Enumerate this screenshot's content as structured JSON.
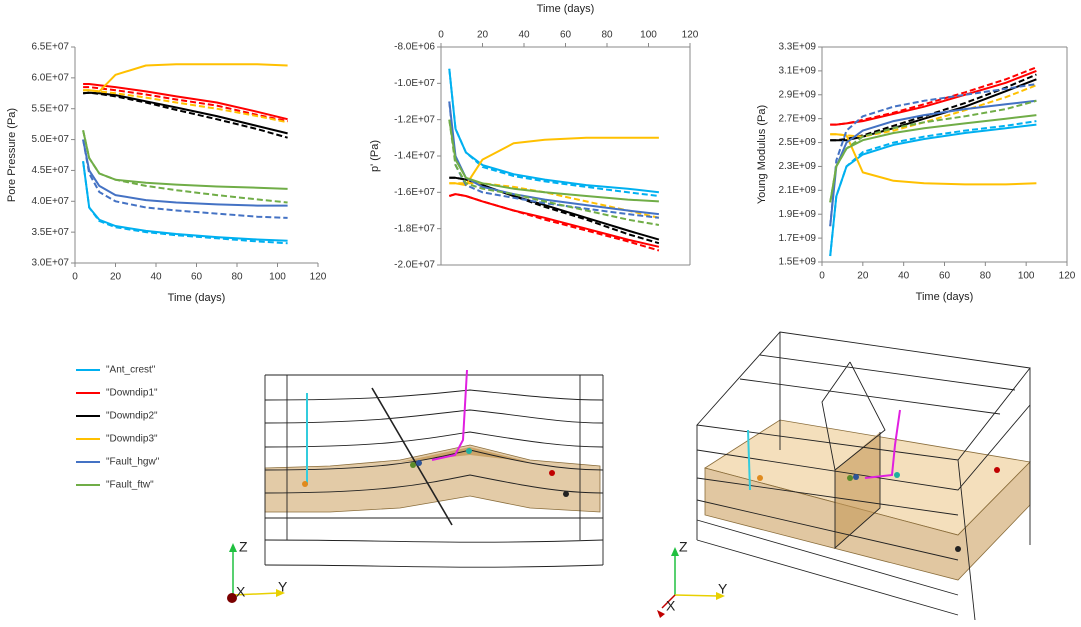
{
  "chart_data": [
    {
      "type": "line",
      "frame": "axes",
      "x_axis_position": "bottom",
      "x_label": "Time (days)",
      "y_label": "Pore Pressure (Pa)",
      "xlim": [
        0,
        120
      ],
      "xticks": [
        0,
        20,
        40,
        60,
        80,
        100,
        120
      ],
      "ylim": [
        30000000.0,
        65000000.0
      ],
      "yticks": [
        {
          "value": 30000000.0,
          "label": "3.0E+07"
        },
        {
          "value": 35000000.0,
          "label": "3.5E+07"
        },
        {
          "value": 40000000.0,
          "label": "4.0E+07"
        },
        {
          "value": 45000000.0,
          "label": "4.5E+07"
        },
        {
          "value": 50000000.0,
          "label": "5.0E+07"
        },
        {
          "value": 55000000.0,
          "label": "5.5E+07"
        },
        {
          "value": 60000000.0,
          "label": "6.0E+07"
        },
        {
          "value": 65000000.0,
          "label": "6.5E+07"
        }
      ],
      "x": [
        4,
        7,
        12,
        20,
        35,
        50,
        70,
        90,
        105
      ],
      "series": [
        {
          "name": "\"Ant_crest\"",
          "color": "#00b0f0",
          "values": [
            46500000.0,
            39000000.0,
            37000000.0,
            36000000.0,
            35200000.0,
            34700000.0,
            34200000.0,
            33800000.0,
            33600000.0
          ],
          "dashed_values": [
            46500000.0,
            39000000.0,
            36800000.0,
            35800000.0,
            35000000.0,
            34500000.0,
            34000000.0,
            33500000.0,
            33200000.0
          ]
        },
        {
          "name": "\"Downdip1\"",
          "color": "#ff0000",
          "values": [
            59000000.0,
            59000000.0,
            58800000.0,
            58500000.0,
            57800000.0,
            57000000.0,
            56000000.0,
            54500000.0,
            53300000.0
          ],
          "dashed_values": [
            58500000.0,
            58500000.0,
            58300000.0,
            58000000.0,
            57300000.0,
            56500000.0,
            55500000.0,
            54000000.0,
            53000000.0
          ]
        },
        {
          "name": "\"Downdip2\"",
          "color": "#000000",
          "values": [
            57500000.0,
            57600000.0,
            57500000.0,
            57200000.0,
            56200000.0,
            55200000.0,
            53800000.0,
            52200000.0,
            51000000.0
          ],
          "dashed_values": [
            57500000.0,
            57600000.0,
            57400000.0,
            57000000.0,
            56000000.0,
            54800000.0,
            53300000.0,
            51700000.0,
            50300000.0
          ]
        },
        {
          "name": "\"Downdip3\"",
          "color": "#ffc000",
          "values": [
            58000000.0,
            58000000.0,
            57800000.0,
            60500000.0,
            62000000.0,
            62200000.0,
            62200000.0,
            62200000.0,
            62000000.0
          ],
          "dashed_values": [
            58000000.0,
            58000000.0,
            57800000.0,
            57500000.0,
            56800000.0,
            56000000.0,
            55000000.0,
            53800000.0,
            52800000.0
          ]
        },
        {
          "name": "\"Fault_hgw\"",
          "color": "#4472c4",
          "values": [
            50000000.0,
            45000000.0,
            42500000.0,
            41000000.0,
            40200000.0,
            39800000.0,
            39500000.0,
            39300000.0,
            39300000.0
          ],
          "dashed_values": [
            50000000.0,
            44500000.0,
            41500000.0,
            40000000.0,
            39000000.0,
            38500000.0,
            38000000.0,
            37500000.0,
            37300000.0
          ]
        },
        {
          "name": "\"Fault_ftw\"",
          "color": "#70ad47",
          "values": [
            51500000.0,
            47000000.0,
            44500000.0,
            43500000.0,
            43000000.0,
            42700000.0,
            42400000.0,
            42200000.0,
            42000000.0
          ],
          "dashed_values": [
            51500000.0,
            47000000.0,
            44500000.0,
            43500000.0,
            42500000.0,
            41800000.0,
            41000000.0,
            40300000.0,
            39800000.0
          ]
        }
      ]
    },
    {
      "type": "line",
      "frame": "box",
      "x_axis_position": "top",
      "x_label": "Time (days)",
      "y_label": "p' (Pa)",
      "xlim": [
        0,
        120
      ],
      "xticks": [
        0,
        20,
        40,
        60,
        80,
        100,
        120
      ],
      "ylim": [
        -20000000.0,
        -8000000.0
      ],
      "yticks": [
        {
          "value": -8000000.0,
          "label": "-8.0E+06"
        },
        {
          "value": -10000000.0,
          "label": "-1.0E+07"
        },
        {
          "value": -12000000.0,
          "label": "-1.2E+07"
        },
        {
          "value": -14000000.0,
          "label": "-1.4E+07"
        },
        {
          "value": -16000000.0,
          "label": "-1.6E+07"
        },
        {
          "value": -18000000.0,
          "label": "-1.8E+07"
        },
        {
          "value": -20000000.0,
          "label": "-2.0E+07"
        }
      ],
      "x": [
        4,
        7,
        12,
        20,
        35,
        50,
        70,
        90,
        105
      ],
      "series": [
        {
          "color": "#00b0f0",
          "values": [
            -9200000.0,
            -12500000.0,
            -13800000.0,
            -14500000.0,
            -15000000.0,
            -15300000.0,
            -15600000.0,
            -15800000.0,
            -16000000.0
          ],
          "dashed_values": [
            -9200000.0,
            -12500000.0,
            -13800000.0,
            -14600000.0,
            -15100000.0,
            -15400000.0,
            -15700000.0,
            -16000000.0,
            -16200000.0
          ]
        },
        {
          "color": "#ff0000",
          "values": [
            -16200000.0,
            -16100000.0,
            -16200000.0,
            -16500000.0,
            -17000000.0,
            -17400000.0,
            -18000000.0,
            -18600000.0,
            -19000000.0
          ],
          "dashed_values": [
            -16200000.0,
            -16100000.0,
            -16200000.0,
            -16500000.0,
            -17000000.0,
            -17500000.0,
            -18100000.0,
            -18700000.0,
            -19200000.0
          ]
        },
        {
          "color": "#000000",
          "values": [
            -15200000.0,
            -15200000.0,
            -15300000.0,
            -15600000.0,
            -16200000.0,
            -16700000.0,
            -17400000.0,
            -18100000.0,
            -18600000.0
          ],
          "dashed_values": [
            -15200000.0,
            -15200000.0,
            -15300000.0,
            -15600000.0,
            -16200000.0,
            -16800000.0,
            -17500000.0,
            -18300000.0,
            -18800000.0
          ]
        },
        {
          "color": "#ffc000",
          "values": [
            -15500000.0,
            -15500000.0,
            -15600000.0,
            -14200000.0,
            -13300000.0,
            -13100000.0,
            -13000000.0,
            -13000000.0,
            -13000000.0
          ],
          "dashed_values": [
            -15500000.0,
            -15500000.0,
            -15500000.0,
            -15500000.0,
            -15700000.0,
            -16000000.0,
            -16500000.0,
            -17000000.0,
            -17400000.0
          ]
        },
        {
          "color": "#4472c4",
          "values": [
            -11000000.0,
            -14000000.0,
            -15200000.0,
            -15700000.0,
            -16100000.0,
            -16400000.0,
            -16700000.0,
            -17000000.0,
            -17200000.0
          ],
          "dashed_values": [
            -11000000.0,
            -14500000.0,
            -15600000.0,
            -16000000.0,
            -16300000.0,
            -16600000.0,
            -16900000.0,
            -17200000.0,
            -17400000.0
          ]
        },
        {
          "color": "#70ad47",
          "values": [
            -12000000.0,
            -14200000.0,
            -15200000.0,
            -15500000.0,
            -15800000.0,
            -16000000.0,
            -16200000.0,
            -16400000.0,
            -16500000.0
          ],
          "dashed_values": [
            -12000000.0,
            -14500000.0,
            -15500000.0,
            -15800000.0,
            -16100000.0,
            -16500000.0,
            -17000000.0,
            -17500000.0,
            -17800000.0
          ]
        }
      ]
    },
    {
      "type": "line",
      "frame": "box",
      "x_axis_position": "bottom",
      "x_label": "Time (days)",
      "y_label": "Young Modulus (Pa)",
      "xlim": [
        0,
        120
      ],
      "xticks": [
        0,
        20,
        40,
        60,
        80,
        100,
        120
      ],
      "ylim": [
        1500000000.0,
        3300000000.0
      ],
      "yticks": [
        {
          "value": 1500000000.0,
          "label": "1.5E+09"
        },
        {
          "value": 1700000000.0,
          "label": "1.7E+09"
        },
        {
          "value": 1900000000.0,
          "label": "1.9E+09"
        },
        {
          "value": 2100000000.0,
          "label": "2.1E+09"
        },
        {
          "value": 2300000000.0,
          "label": "2.3E+09"
        },
        {
          "value": 2500000000.0,
          "label": "2.5E+09"
        },
        {
          "value": 2700000000.0,
          "label": "2.7E+09"
        },
        {
          "value": 2900000000.0,
          "label": "2.9E+09"
        },
        {
          "value": 3100000000.0,
          "label": "3.1E+09"
        },
        {
          "value": 3300000000.0,
          "label": "3.3E+09"
        }
      ],
      "x": [
        4,
        7,
        12,
        20,
        35,
        50,
        70,
        90,
        105
      ],
      "series": [
        {
          "color": "#00b0f0",
          "values": [
            1550000000.0,
            2050000000.0,
            2300000000.0,
            2400000000.0,
            2480000000.0,
            2530000000.0,
            2580000000.0,
            2620000000.0,
            2650000000.0
          ],
          "dashed_values": [
            1550000000.0,
            2050000000.0,
            2300000000.0,
            2420000000.0,
            2500000000.0,
            2550000000.0,
            2600000000.0,
            2640000000.0,
            2680000000.0
          ]
        },
        {
          "color": "#ff0000",
          "values": [
            2650000000.0,
            2650000000.0,
            2660000000.0,
            2680000000.0,
            2740000000.0,
            2800000000.0,
            2900000000.0,
            3000000000.0,
            3100000000.0
          ],
          "dashed_values": [
            2650000000.0,
            2650000000.0,
            2660000000.0,
            2690000000.0,
            2750000000.0,
            2820000000.0,
            2920000000.0,
            3030000000.0,
            3130000000.0
          ]
        },
        {
          "color": "#000000",
          "values": [
            2520000000.0,
            2520000000.0,
            2520000000.0,
            2550000000.0,
            2620000000.0,
            2700000000.0,
            2800000000.0,
            2930000000.0,
            3030000000.0
          ],
          "dashed_values": [
            2520000000.0,
            2520000000.0,
            2530000000.0,
            2560000000.0,
            2640000000.0,
            2720000000.0,
            2830000000.0,
            2960000000.0,
            3070000000.0
          ]
        },
        {
          "color": "#ffc000",
          "values": [
            2570000000.0,
            2570000000.0,
            2560000000.0,
            2250000000.0,
            2180000000.0,
            2160000000.0,
            2150000000.0,
            2150000000.0,
            2160000000.0
          ],
          "dashed_values": [
            2570000000.0,
            2570000000.0,
            2560000000.0,
            2550000000.0,
            2600000000.0,
            2670000000.0,
            2770000000.0,
            2880000000.0,
            2980000000.0
          ]
        },
        {
          "color": "#4472c4",
          "values": [
            1800000000.0,
            2300000000.0,
            2500000000.0,
            2600000000.0,
            2680000000.0,
            2730000000.0,
            2780000000.0,
            2820000000.0,
            2850000000.0
          ],
          "dashed_values": [
            1800000000.0,
            2350000000.0,
            2600000000.0,
            2720000000.0,
            2800000000.0,
            2850000000.0,
            2900000000.0,
            2950000000.0,
            2990000000.0
          ]
        },
        {
          "color": "#70ad47",
          "values": [
            2000000000.0,
            2300000000.0,
            2450000000.0,
            2520000000.0,
            2580000000.0,
            2620000000.0,
            2660000000.0,
            2700000000.0,
            2730000000.0
          ],
          "dashed_values": [
            2000000000.0,
            2300000000.0,
            2450000000.0,
            2550000000.0,
            2620000000.0,
            2670000000.0,
            2720000000.0,
            2780000000.0,
            2850000000.0
          ]
        }
      ]
    }
  ],
  "views": [
    {
      "z_label": "Z",
      "y_label": "Y",
      "x_label": "X"
    },
    {
      "z_label": "Z",
      "y_label": "Y",
      "x_label": "X"
    }
  ]
}
